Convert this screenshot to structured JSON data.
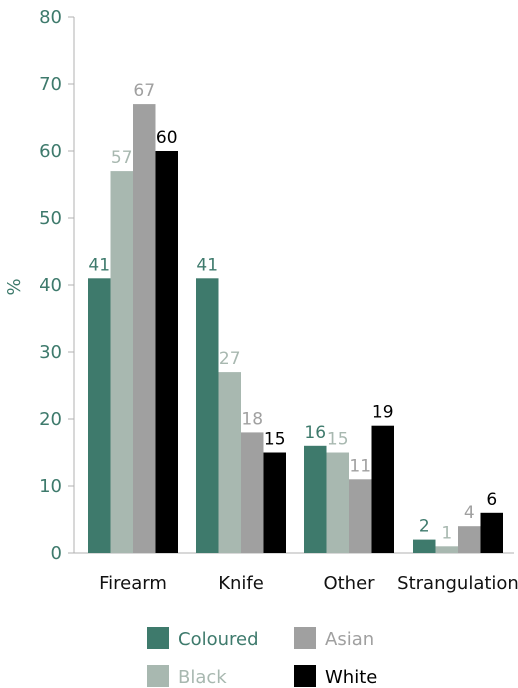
{
  "chart_data": {
    "type": "bar",
    "categories": [
      "Firearm",
      "Knife",
      "Other",
      "Strangulation"
    ],
    "series": [
      {
        "name": "Coloured",
        "values": [
          41,
          41,
          16,
          2
        ],
        "color": "#3e7a6c"
      },
      {
        "name": "Black",
        "values": [
          57,
          27,
          15,
          1
        ],
        "color": "#a8b8b0"
      },
      {
        "name": "Asian",
        "values": [
          67,
          18,
          11,
          4
        ],
        "color": "#a0a0a0"
      },
      {
        "name": "White",
        "values": [
          60,
          15,
          19,
          6
        ],
        "color": "#000000"
      }
    ],
    "data_labels": [
      [
        "41",
        "57",
        "67",
        "60"
      ],
      [
        "41",
        "27",
        "18",
        "15"
      ],
      [
        "16",
        "15",
        "11",
        "19"
      ],
      [
        "2",
        "1",
        "4",
        "6"
      ]
    ],
    "y_ticks": [
      "0",
      "10",
      "20",
      "30",
      "40",
      "50",
      "60",
      "70",
      "80"
    ],
    "ylabel": "%",
    "ylim": [
      0,
      80
    ],
    "grid": false,
    "legend_position": "bottom",
    "colors": {
      "axis_text": "#3e7a6c",
      "axis_line": "#b0b0b0",
      "category_text": "#111111"
    }
  }
}
